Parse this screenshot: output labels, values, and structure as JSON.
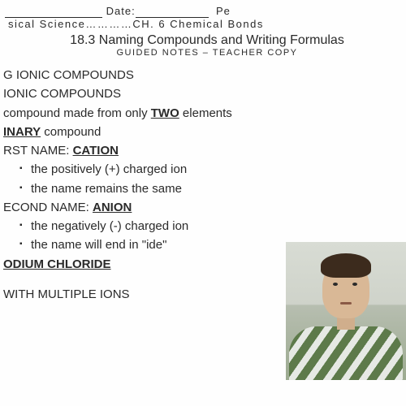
{
  "header": {
    "blank1_width": 120,
    "date_label": "Date:",
    "blank2_width": 90,
    "pe_label": "Pe",
    "course_line": "sical Science…………CH. 6 Chemical Bonds",
    "title": "18.3 Naming Compounds and Writing Formulas",
    "subtitle": "GUIDED NOTES – TEACHER COPY"
  },
  "lines": {
    "l1": "G IONIC COMPOUNDS",
    "l2": "IONIC COMPOUNDS",
    "l3_prefix": "compound made from only ",
    "l3_bold": "TWO",
    "l3_suffix": " elements",
    "l4_bold": "INARY",
    "l4_suffix": " compound",
    "l5_prefix": "RST NAME: ",
    "l5_bold": "CATION",
    "b1": "the positively (+) charged ion",
    "b2": "the name remains the same",
    "l6_prefix": "ECOND NAME: ",
    "l6_bold": "ANION",
    "b3": "the negatively (-) charged ion",
    "b4": "the name will end in \"ide\"",
    "l7_bold": "ODIUM CHLORIDE",
    "l8": "WITH MULTIPLE IONS"
  },
  "colors": {
    "text": "#2a2a2a",
    "background": "#fefefe"
  }
}
